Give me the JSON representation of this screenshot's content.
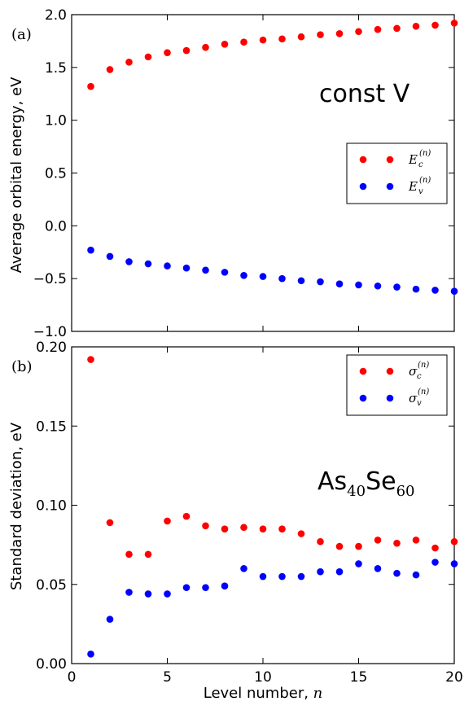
{
  "chart_data": [
    {
      "type": "scatter",
      "panel_label": "(a)",
      "ylabel": "Average orbital energy, eV",
      "annotation": "const V",
      "ylim": [
        -1.0,
        2.0
      ],
      "yticks": [
        -1.0,
        -0.5,
        0.0,
        0.5,
        1.0,
        1.5,
        2.0
      ],
      "ytick_labels": [
        "−1.0",
        "−0.5",
        "0.0",
        "0.5",
        "1.0",
        "1.5",
        "2.0"
      ],
      "xlim": [
        0,
        20
      ],
      "xticks": [
        0,
        5,
        10,
        15,
        20
      ],
      "legend_position": "center-right",
      "series": [
        {
          "name": "E_c^(n)",
          "legend_main": "E",
          "legend_sub": "c",
          "legend_sup": "(n)",
          "color": "#ff0000",
          "x": [
            1,
            2,
            3,
            4,
            5,
            6,
            7,
            8,
            9,
            10,
            11,
            12,
            13,
            14,
            15,
            16,
            17,
            18,
            19,
            20
          ],
          "values": [
            1.32,
            1.48,
            1.55,
            1.6,
            1.64,
            1.66,
            1.69,
            1.72,
            1.74,
            1.76,
            1.77,
            1.79,
            1.81,
            1.82,
            1.84,
            1.86,
            1.87,
            1.89,
            1.9,
            1.92
          ]
        },
        {
          "name": "E_v^(n)",
          "legend_main": "E",
          "legend_sub": "v",
          "legend_sup": "(n)",
          "color": "#0000ff",
          "x": [
            1,
            2,
            3,
            4,
            5,
            6,
            7,
            8,
            9,
            10,
            11,
            12,
            13,
            14,
            15,
            16,
            17,
            18,
            19,
            20
          ],
          "values": [
            -0.23,
            -0.29,
            -0.34,
            -0.36,
            -0.38,
            -0.4,
            -0.42,
            -0.44,
            -0.47,
            -0.48,
            -0.5,
            -0.52,
            -0.53,
            -0.55,
            -0.56,
            -0.57,
            -0.58,
            -0.6,
            -0.61,
            -0.62
          ]
        }
      ]
    },
    {
      "type": "scatter",
      "panel_label": "(b)",
      "ylabel": "Standard deviation, eV",
      "annotation_main": "As",
      "annotation_sub1": "40",
      "annotation_mid": "Se",
      "annotation_sub2": "60",
      "ylim": [
        0.0,
        0.2
      ],
      "yticks": [
        0.0,
        0.05,
        0.1,
        0.15,
        0.2
      ],
      "ytick_labels": [
        "0.00",
        "0.05",
        "0.10",
        "0.15",
        "0.20"
      ],
      "xlim": [
        0,
        20
      ],
      "xticks": [
        0,
        5,
        10,
        15,
        20
      ],
      "xtick_labels": [
        "0",
        "5",
        "10",
        "15",
        "20"
      ],
      "xlabel_text": "Level number, ",
      "xlabel_var": "n",
      "legend_position": "top-right",
      "series": [
        {
          "name": "sigma_c^(n)",
          "legend_main": "σ",
          "legend_sub": "c",
          "legend_sup": "(n)",
          "color": "#ff0000",
          "x": [
            1,
            2,
            3,
            4,
            5,
            6,
            7,
            8,
            9,
            10,
            11,
            12,
            13,
            14,
            15,
            16,
            17,
            18,
            19,
            20
          ],
          "values": [
            0.192,
            0.089,
            0.069,
            0.069,
            0.09,
            0.093,
            0.087,
            0.085,
            0.086,
            0.085,
            0.085,
            0.082,
            0.077,
            0.074,
            0.074,
            0.078,
            0.076,
            0.078,
            0.073,
            0.077
          ]
        },
        {
          "name": "sigma_v^(n)",
          "legend_main": "σ",
          "legend_sub": "v",
          "legend_sup": "(n)",
          "color": "#0000ff",
          "x": [
            1,
            2,
            3,
            4,
            5,
            6,
            7,
            8,
            9,
            10,
            11,
            12,
            13,
            14,
            15,
            16,
            17,
            18,
            19,
            20
          ],
          "values": [
            0.006,
            0.028,
            0.045,
            0.044,
            0.044,
            0.048,
            0.048,
            0.049,
            0.06,
            0.055,
            0.055,
            0.055,
            0.058,
            0.058,
            0.063,
            0.06,
            0.057,
            0.056,
            0.064,
            0.063
          ]
        }
      ]
    }
  ]
}
